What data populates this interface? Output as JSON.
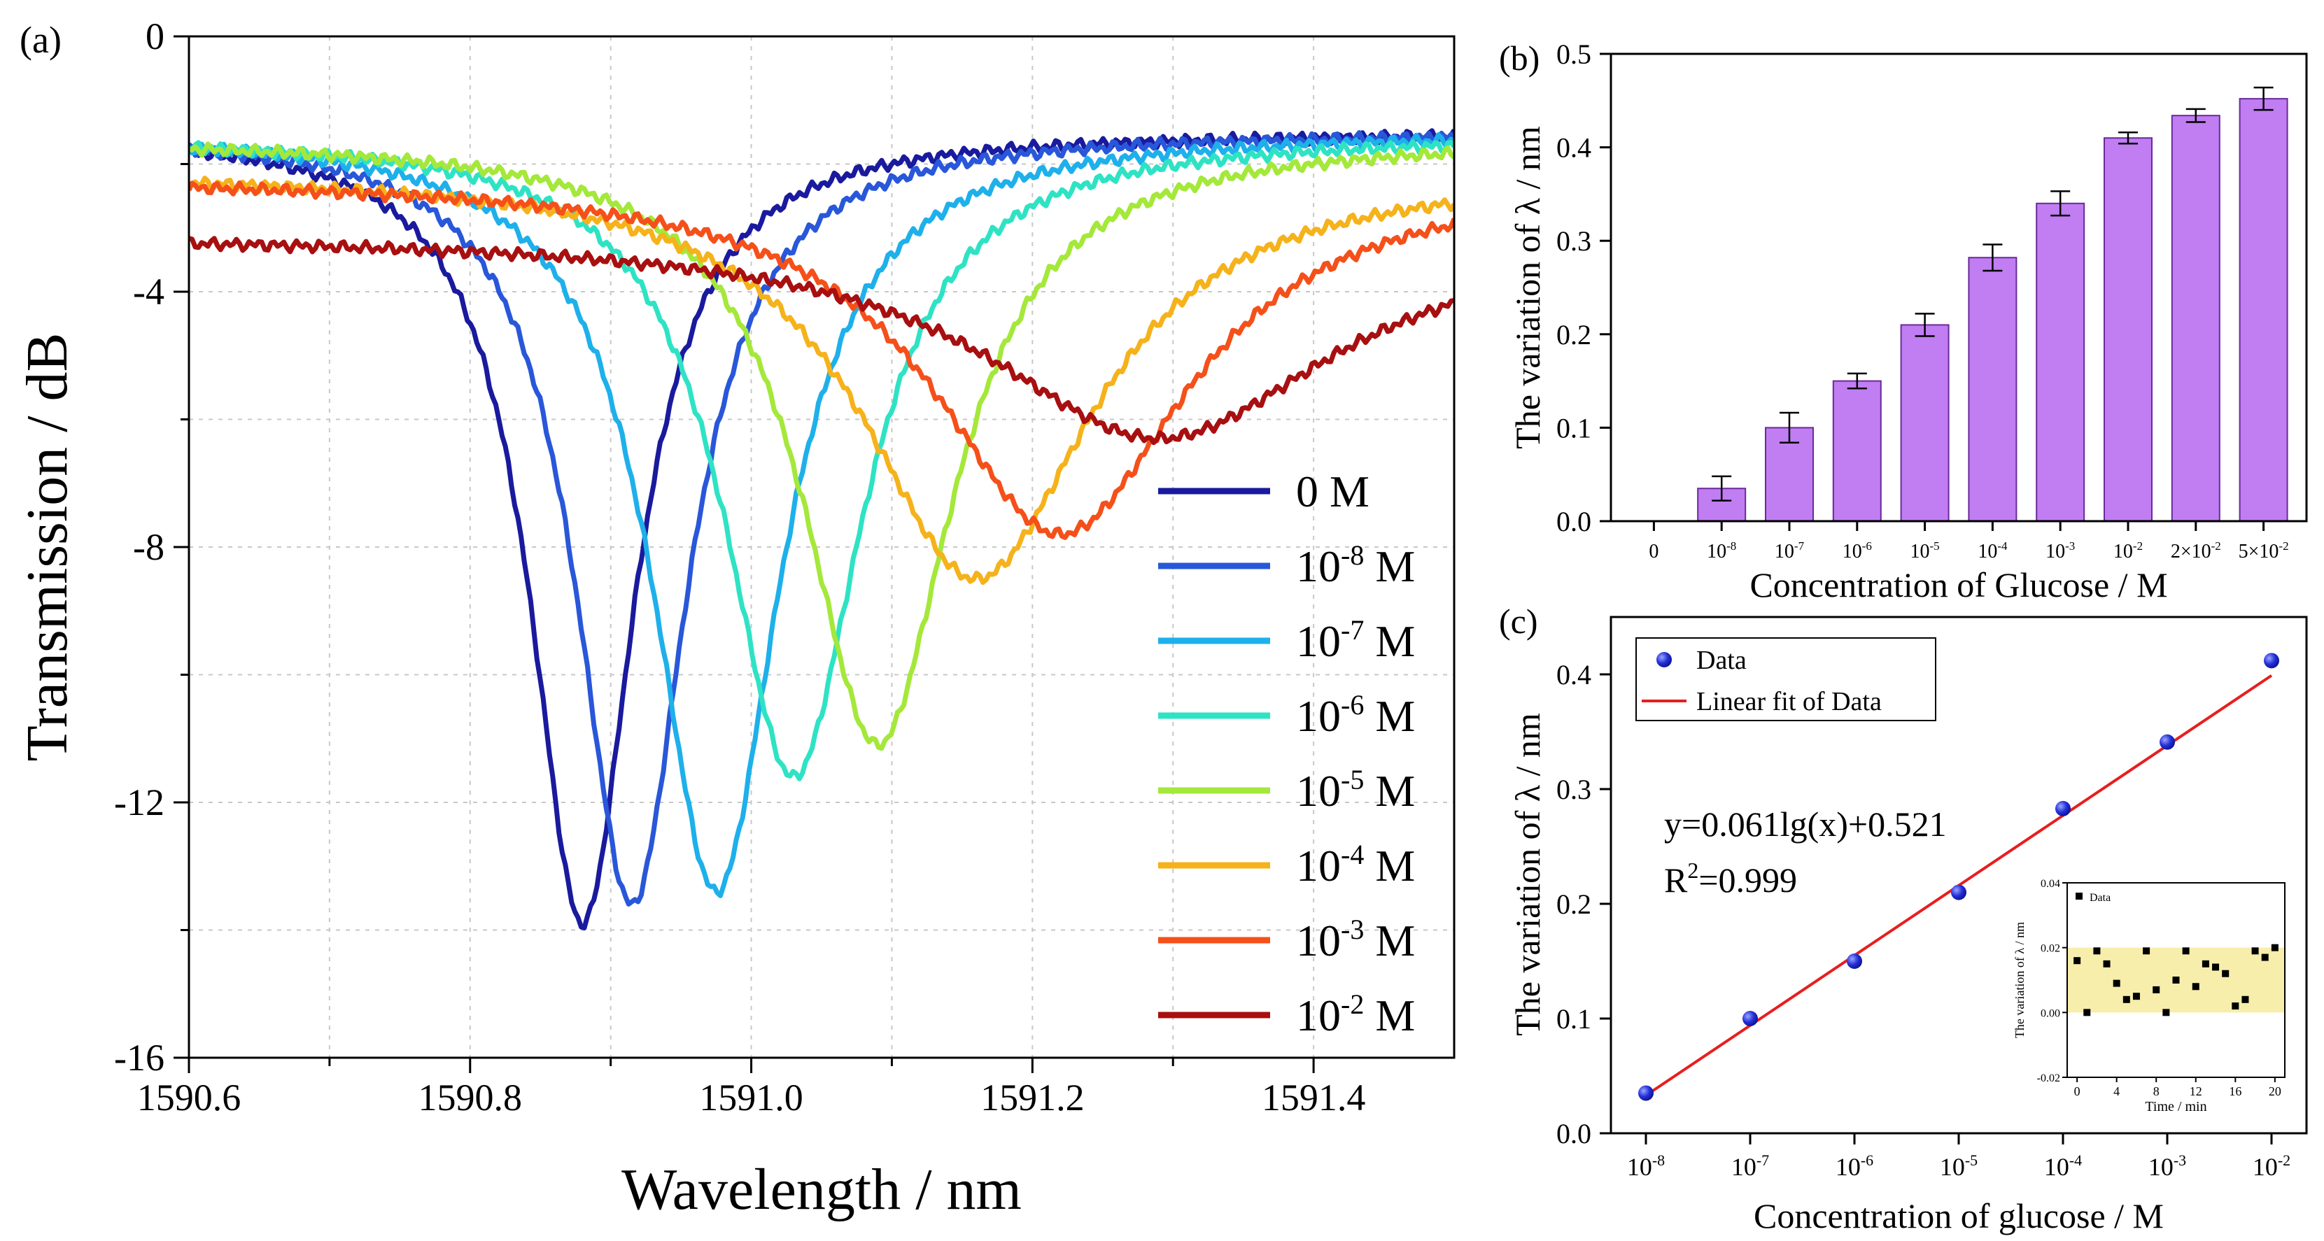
{
  "chart_data": [
    {
      "panel": "(a)",
      "type": "line",
      "xlabel": "Wavelength / nm",
      "ylabel": "Transmission / dB",
      "xlim": [
        1590.6,
        1591.5
      ],
      "ylim": [
        -16,
        0
      ],
      "xticks": [
        1590.6,
        1590.8,
        1591.0,
        1591.2,
        1591.4
      ],
      "xtick_labels": [
        "1590.6",
        "1590.8",
        "1591.0",
        "1591.2",
        "1591.4"
      ],
      "yticks": [
        0,
        -4,
        -8,
        -12,
        -16
      ],
      "ytick_labels": [
        "0",
        "-4",
        "-8",
        "-12",
        "-16"
      ],
      "grid": true,
      "legend_position": "bottom-right",
      "series": [
        {
          "name": "0 M",
          "legend_base": "0",
          "legend_exp": "",
          "legend_unit": " M",
          "color": "#1a1a9e",
          "baseline": -1.5,
          "center": 1590.88,
          "depth": -13.9,
          "width": 0.045
        },
        {
          "name": "10-8 M",
          "legend_base": "10",
          "legend_exp": "-8",
          "legend_unit": " M",
          "color": "#2957d9",
          "baseline": -1.5,
          "center": 1590.915,
          "depth": -13.6,
          "width": 0.048
        },
        {
          "name": "10-7 M",
          "legend_base": "10",
          "legend_exp": "-7",
          "legend_unit": " M",
          "color": "#1eb0ea",
          "baseline": -1.5,
          "center": 1590.975,
          "depth": -13.4,
          "width": 0.055
        },
        {
          "name": "10-6 M",
          "legend_base": "10",
          "legend_exp": "-6",
          "legend_unit": " M",
          "color": "#2ee3c4",
          "baseline": -1.55,
          "center": 1591.03,
          "depth": -11.6,
          "width": 0.06
        },
        {
          "name": "10-5 M",
          "legend_base": "10",
          "legend_exp": "-5",
          "legend_unit": " M",
          "color": "#a4e83a",
          "baseline": -1.6,
          "center": 1591.09,
          "depth": -11.1,
          "width": 0.065
        },
        {
          "name": "10-4 M",
          "legend_base": "10",
          "legend_exp": "-4",
          "legend_unit": " M",
          "color": "#f5b21b",
          "baseline": -2.1,
          "center": 1591.16,
          "depth": -8.5,
          "width": 0.1
        },
        {
          "name": "10-3 M",
          "legend_base": "10",
          "legend_exp": "-3",
          "legend_unit": " M",
          "color": "#f5501a",
          "baseline": -2.2,
          "center": 1591.22,
          "depth": -7.8,
          "width": 0.11
        },
        {
          "name": "10-2 M",
          "legend_base": "10",
          "legend_exp": "-2",
          "legend_unit": " M",
          "color": "#a80f10",
          "baseline": -3.1,
          "center": 1591.29,
          "depth": -6.3,
          "width": 0.15
        }
      ]
    },
    {
      "panel": "(b)",
      "type": "bar",
      "xlabel": "Concentration of Glucose / M",
      "ylabel": "The variation of λ / nm",
      "ylim": [
        0,
        0.5
      ],
      "yticks": [
        0,
        0.1,
        0.2,
        0.3,
        0.4,
        0.5
      ],
      "ytick_labels": [
        "0.0",
        "0.1",
        "0.2",
        "0.3",
        "0.4",
        "0.5"
      ],
      "bar_color": "#c07ef2",
      "categories": [
        {
          "base": "0",
          "exp": ""
        },
        {
          "base": "10",
          "exp": "-8"
        },
        {
          "base": "10",
          "exp": "-7"
        },
        {
          "base": "10",
          "exp": "-6"
        },
        {
          "base": "10",
          "exp": "-5"
        },
        {
          "base": "10",
          "exp": "-4"
        },
        {
          "base": "10",
          "exp": "-3"
        },
        {
          "base": "10",
          "exp": "-2"
        },
        {
          "base": "2×10",
          "exp": "-2"
        },
        {
          "base": "5×10",
          "exp": "-2"
        }
      ],
      "values": [
        0,
        0.035,
        0.1,
        0.15,
        0.21,
        0.282,
        0.34,
        0.41,
        0.434,
        0.452
      ],
      "errors": [
        0,
        0.013,
        0.016,
        0.008,
        0.012,
        0.014,
        0.013,
        0.006,
        0.007,
        0.012
      ]
    },
    {
      "panel": "(c)",
      "type": "scatter",
      "xlabel": "Concentration of glucose / M",
      "ylabel": "The variation of λ / nm",
      "xscale": "log",
      "xlim_exp": [
        -8,
        -2
      ],
      "ylim": [
        0,
        0.45
      ],
      "yticks": [
        0,
        0.1,
        0.2,
        0.3,
        0.4
      ],
      "ytick_labels": [
        "0.0",
        "0.1",
        "0.2",
        "0.3",
        "0.4"
      ],
      "x_exponents": [
        -8,
        -7,
        -6,
        -5,
        -4,
        -3,
        -2
      ],
      "xtick_base": "10",
      "data_label": "Data",
      "fit_label": "Linear fit of Data",
      "point_color": "#1f2bd6",
      "fit_color": "#e81e1e",
      "points": [
        {
          "exp": -8,
          "y": 0.035
        },
        {
          "exp": -7,
          "y": 0.1
        },
        {
          "exp": -6,
          "y": 0.15
        },
        {
          "exp": -5,
          "y": 0.21
        },
        {
          "exp": -4,
          "y": 0.283
        },
        {
          "exp": -3,
          "y": 0.341
        },
        {
          "exp": -2,
          "y": 0.412
        }
      ],
      "fit": {
        "slope": 0.061,
        "intercept": 0.521
      },
      "equation": "y=0.061lg(x)+0.521",
      "r2_prefix": "R",
      "r2_exp": "2",
      "r2_value": "=0.999",
      "legend_position": "top-left",
      "inset": {
        "type": "scatter",
        "xlabel": "Time / min",
        "ylabel": "The variation of λ / nm",
        "legend": "Data",
        "xlim": [
          -1,
          21
        ],
        "ylim": [
          -0.02,
          0.04
        ],
        "xticks": [
          0,
          4,
          8,
          12,
          16,
          20
        ],
        "xtick_labels": [
          "0",
          "4",
          "8",
          "12",
          "16",
          "20"
        ],
        "yticks": [
          -0.02,
          0,
          0.02,
          0.04
        ],
        "ytick_labels": [
          "-0.02",
          "0.00",
          "0.02",
          "0.04"
        ],
        "band": [
          0,
          0.02
        ],
        "band_color": "#f6eeaa",
        "points": [
          [
            0,
            0.016
          ],
          [
            1,
            0
          ],
          [
            2,
            0.019
          ],
          [
            3,
            0.015
          ],
          [
            4,
            0.009
          ],
          [
            5,
            0.004
          ],
          [
            6,
            0.005
          ],
          [
            7,
            0.019
          ],
          [
            8,
            0.007
          ],
          [
            9,
            0
          ],
          [
            10,
            0.01
          ],
          [
            11,
            0.019
          ],
          [
            12,
            0.008
          ],
          [
            13,
            0.015
          ],
          [
            14,
            0.014
          ],
          [
            15,
            0.012
          ],
          [
            16,
            0.002
          ],
          [
            17,
            0.004
          ],
          [
            18,
            0.019
          ],
          [
            19,
            0.017
          ],
          [
            20,
            0.02
          ]
        ]
      }
    }
  ]
}
